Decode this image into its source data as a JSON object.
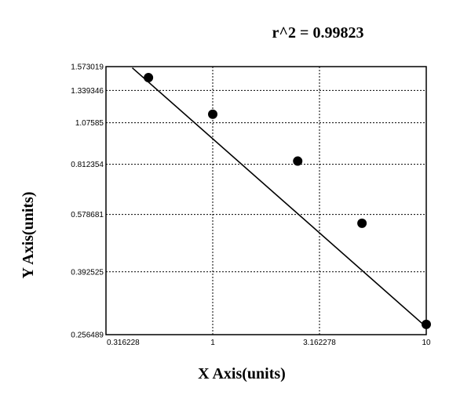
{
  "chart_data": {
    "type": "scatter",
    "title": "r^2  =  0.99823",
    "xlabel": "X Axis(units)",
    "ylabel": "Y Axis(units)",
    "x_scale": "log",
    "y_scale": "log",
    "xlim": [
      0.316228,
      10
    ],
    "ylim": [
      0.256489,
      1.573019
    ],
    "x_ticks": [
      {
        "value": 0.316228,
        "label": "0.316228"
      },
      {
        "value": 1,
        "label": "1"
      },
      {
        "value": 3.162278,
        "label": "3.162278"
      },
      {
        "value": 10,
        "label": "10"
      }
    ],
    "y_ticks": [
      {
        "value": 1.573019,
        "label": "1.573019"
      },
      {
        "value": 1.339346,
        "label": "1.339346"
      },
      {
        "value": 1.07585,
        "label": "1.07585"
      },
      {
        "value": 0.812354,
        "label": "0.812354"
      },
      {
        "value": 0.578681,
        "label": "0.578681"
      },
      {
        "value": 0.392525,
        "label": "0.392525"
      },
      {
        "value": 0.256489,
        "label": "0.256489"
      }
    ],
    "grid": true,
    "series": [
      {
        "points": [
          {
            "x": 0.5,
            "y": 1.46
          },
          {
            "x": 1.0,
            "y": 1.14
          },
          {
            "x": 2.5,
            "y": 0.83
          },
          {
            "x": 5.0,
            "y": 0.545
          },
          {
            "x": 10.0,
            "y": 0.275
          }
        ]
      }
    ],
    "fit_line": {
      "x": [
        0.42,
        10.0
      ],
      "y": [
        1.56,
        0.27
      ]
    }
  }
}
